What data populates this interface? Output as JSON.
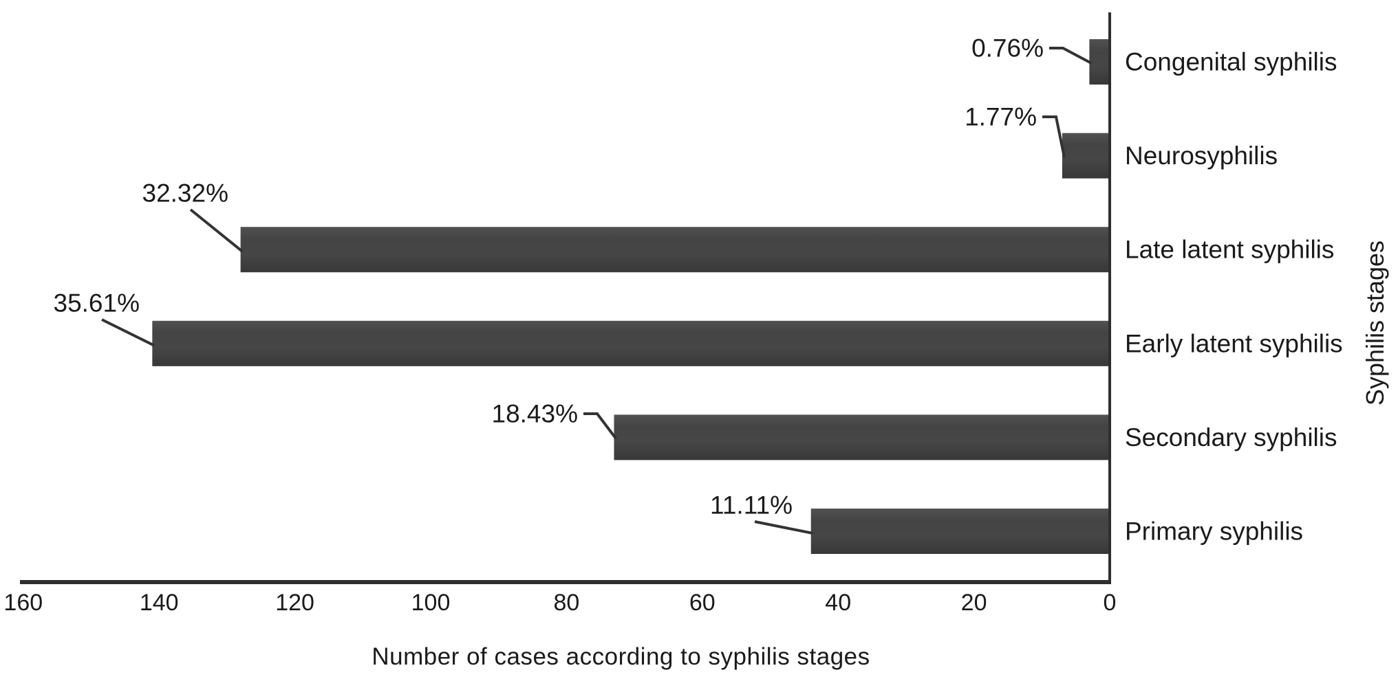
{
  "figure": {
    "background": "#ffffff"
  },
  "chart_data": {
    "type": "bar",
    "orientation": "horizontal",
    "title": "",
    "xlabel": "Number of cases according to syphilis stages",
    "ylabel": "Syphilis stages",
    "categories": [
      "Congenital syphilis",
      "Neurosyphilis",
      "Late latent syphilis",
      "Early latent syphilis",
      "Secondary syphilis",
      "Primary syphilis"
    ],
    "values": [
      3,
      7,
      128,
      141,
      73,
      44
    ],
    "value_unit": "cases",
    "percentages": [
      0.76,
      1.77,
      32.32,
      35.61,
      18.43,
      11.11
    ],
    "percent_labels": [
      "0.76%",
      "1.77%",
      "32.32%",
      "35.61%",
      "18.43%",
      "11.11%"
    ],
    "x_ticks": [
      160,
      140,
      120,
      100,
      80,
      60,
      40,
      20,
      0
    ],
    "xlim": [
      160,
      0
    ],
    "x_axis_reversed": true,
    "grid": false,
    "legend": "none",
    "bar_color": "#444444",
    "bar_gradient_top": "#525252",
    "bar_gradient_mid": "#464646",
    "bar_gradient_bottom": "#383838",
    "axis_color": "#2e2e2e",
    "callout_color": "#333333",
    "text_color": "#1a1a1a"
  }
}
